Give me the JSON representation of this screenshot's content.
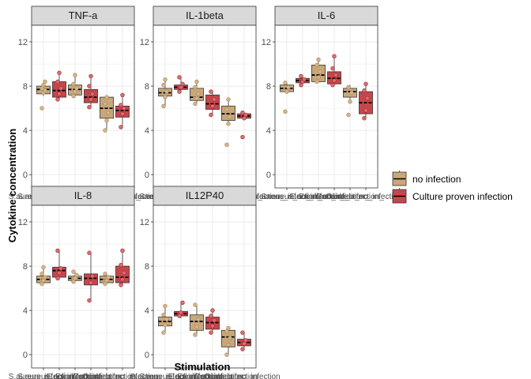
{
  "chart_data": {
    "type": "box",
    "xlabel": "Stimulation",
    "ylabel": "Cytokine concentration",
    "ylim": [
      -1.2,
      13.5
    ],
    "yticks": [
      0,
      4,
      8,
      12
    ],
    "grid": true,
    "legend_position": "right",
    "colors": {
      "no infection": "#c8a77a",
      "Culture proven infection": "#c6464a",
      "no_infection_points": "#d4b58a",
      "infection_points": "#e06b72",
      "strip_bg": "#d9d9d9",
      "grid": "#ebebeb",
      "box_outline": "#333333"
    },
    "legend": [
      {
        "label": "no infection",
        "key": "no infection"
      },
      {
        "label": "Culture proven infection",
        "key": "Culture proven infection"
      }
    ],
    "x_tick_labels": [
      "S.aureus_infection_",
      "S.aureus_no_infection_",
      "E.coli_infection_",
      "E.coli_no_infection_",
      "Candida_infection_",
      "Candida_no_infection_"
    ],
    "panels": [
      {
        "title": "TNF-a",
        "boxes": [
          {
            "group": "no infection",
            "q1": 7.3,
            "median": 7.7,
            "q3": 8.0,
            "min": 7.1,
            "max": 8.4,
            "points": [
              6.0,
              7.4,
              7.6,
              7.8,
              8.1,
              8.4
            ]
          },
          {
            "group": "Culture proven infection",
            "q1": 7.0,
            "median": 7.6,
            "q3": 8.4,
            "min": 6.8,
            "max": 9.2,
            "points": [
              6.8,
              7.3,
              7.8,
              8.4,
              9.2
            ]
          },
          {
            "group": "no infection",
            "q1": 7.2,
            "median": 7.7,
            "q3": 8.1,
            "min": 7.0,
            "max": 9.0,
            "points": [
              7.1,
              7.5,
              7.8,
              8.2,
              9.0
            ]
          },
          {
            "group": "Culture proven infection",
            "q1": 6.5,
            "median": 7.0,
            "q3": 7.7,
            "min": 6.0,
            "max": 8.9,
            "points": [
              6.1,
              6.8,
              7.3,
              8.0,
              8.9
            ]
          },
          {
            "group": "no infection",
            "q1": 5.1,
            "median": 6.0,
            "q3": 7.0,
            "min": 4.1,
            "max": 7.1,
            "points": [
              4.0,
              4.9,
              5.6,
              6.4,
              7.0
            ]
          },
          {
            "group": "Culture proven infection",
            "q1": 5.2,
            "median": 5.8,
            "q3": 6.2,
            "min": 4.3,
            "max": 7.2,
            "points": [
              4.3,
              5.5,
              6.0,
              6.3,
              7.2
            ]
          }
        ]
      },
      {
        "title": "IL-1beta",
        "boxes": [
          {
            "group": "no infection",
            "q1": 7.1,
            "median": 7.4,
            "q3": 7.8,
            "min": 6.2,
            "max": 8.6,
            "points": [
              6.2,
              7.0,
              7.5,
              8.1,
              8.6
            ]
          },
          {
            "group": "Culture proven infection",
            "q1": 7.7,
            "median": 7.9,
            "q3": 8.1,
            "min": 7.4,
            "max": 8.8,
            "points": [
              7.5,
              7.9,
              8.2,
              8.8
            ]
          },
          {
            "group": "no infection",
            "q1": 6.7,
            "median": 7.0,
            "q3": 7.8,
            "min": 6.4,
            "max": 8.4,
            "points": [
              6.4,
              6.9,
              7.3,
              7.9,
              8.4
            ]
          },
          {
            "group": "Culture proven infection",
            "q1": 5.9,
            "median": 6.4,
            "q3": 7.2,
            "min": 5.4,
            "max": 7.6,
            "points": [
              5.4,
              6.2,
              6.8,
              7.5
            ]
          },
          {
            "group": "no infection",
            "q1": 4.9,
            "median": 5.5,
            "q3": 6.2,
            "min": 4.5,
            "max": 6.8,
            "points": [
              2.7,
              4.6,
              5.2,
              5.9,
              6.8
            ]
          },
          {
            "group": "Culture proven infection",
            "q1": 5.1,
            "median": 5.3,
            "q3": 5.5,
            "min": 5.0,
            "max": 5.6,
            "points": [
              3.4,
              5.1,
              5.4,
              5.6
            ]
          }
        ]
      },
      {
        "title": "IL-6",
        "boxes": [
          {
            "group": "no infection",
            "q1": 7.5,
            "median": 7.8,
            "q3": 8.1,
            "min": 7.3,
            "max": 8.3,
            "points": [
              5.7,
              7.5,
              7.9,
              8.3
            ]
          },
          {
            "group": "Culture proven infection",
            "q1": 8.3,
            "median": 8.5,
            "q3": 8.7,
            "min": 8.1,
            "max": 8.9,
            "points": [
              8.1,
              8.4,
              8.6,
              8.9
            ]
          },
          {
            "group": "no infection",
            "q1": 8.4,
            "median": 9.0,
            "q3": 9.9,
            "min": 8.3,
            "max": 10.4,
            "points": [
              8.4,
              8.8,
              9.3,
              9.9,
              10.4
            ]
          },
          {
            "group": "Culture proven infection",
            "q1": 8.2,
            "median": 8.7,
            "q3": 9.3,
            "min": 8.0,
            "max": 10.7,
            "points": [
              8.1,
              8.5,
              9.0,
              9.6,
              10.7
            ]
          },
          {
            "group": "no infection",
            "q1": 7.0,
            "median": 7.5,
            "q3": 7.8,
            "min": 6.5,
            "max": 8.1,
            "points": [
              5.4,
              6.6,
              7.4,
              7.9
            ]
          },
          {
            "group": "Culture proven infection",
            "q1": 5.5,
            "median": 6.5,
            "q3": 7.5,
            "min": 5.1,
            "max": 8.2,
            "points": [
              5.1,
              5.8,
              6.9,
              7.6,
              8.2
            ]
          }
        ]
      },
      {
        "title": "IL-8",
        "boxes": [
          {
            "group": "no infection",
            "q1": 6.5,
            "median": 6.8,
            "q3": 7.1,
            "min": 6.4,
            "max": 7.9,
            "points": [
              6.4,
              6.7,
              7.0,
              7.3,
              7.9
            ]
          },
          {
            "group": "Culture proven infection",
            "q1": 7.0,
            "median": 7.6,
            "q3": 7.9,
            "min": 6.8,
            "max": 9.4,
            "points": [
              6.9,
              7.4,
              7.8,
              9.4
            ]
          },
          {
            "group": "no infection",
            "q1": 6.7,
            "median": 6.9,
            "q3": 7.1,
            "min": 6.5,
            "max": 7.4,
            "points": [
              6.6,
              6.9,
              7.2,
              7.5
            ]
          },
          {
            "group": "Culture proven infection",
            "q1": 6.3,
            "median": 6.9,
            "q3": 7.3,
            "min": 4.9,
            "max": 9.2,
            "points": [
              4.9,
              6.5,
              7.1,
              9.2
            ]
          },
          {
            "group": "no infection",
            "q1": 6.5,
            "median": 6.8,
            "q3": 7.1,
            "min": 6.3,
            "max": 7.4,
            "points": [
              6.4,
              6.7,
              7.0,
              7.3
            ]
          },
          {
            "group": "Culture proven infection",
            "q1": 6.5,
            "median": 7.0,
            "q3": 8.0,
            "min": 6.3,
            "max": 9.4,
            "points": [
              6.3,
              6.8,
              7.4,
              8.1,
              9.4
            ]
          }
        ]
      },
      {
        "title": "IL12P40",
        "boxes": [
          {
            "group": "no infection",
            "q1": 2.6,
            "median": 3.0,
            "q3": 3.4,
            "min": 2.0,
            "max": 4.4,
            "points": [
              2.0,
              2.7,
              3.2,
              3.6,
              4.4
            ]
          },
          {
            "group": "Culture proven infection",
            "q1": 3.5,
            "median": 3.7,
            "q3": 3.9,
            "min": 3.3,
            "max": 4.7,
            "points": [
              3.5,
              3.8,
              4.7
            ]
          },
          {
            "group": "no infection",
            "q1": 2.2,
            "median": 3.0,
            "q3": 3.6,
            "min": 1.8,
            "max": 4.5,
            "points": [
              1.8,
              2.5,
              3.2,
              4.5
            ]
          },
          {
            "group": "Culture proven infection",
            "q1": 2.3,
            "median": 2.9,
            "q3": 3.4,
            "min": 2.0,
            "max": 4.0,
            "points": [
              2.0,
              2.6,
              3.1,
              3.5,
              4.0
            ]
          },
          {
            "group": "no infection",
            "q1": 0.7,
            "median": 1.6,
            "q3": 2.2,
            "min": 0.0,
            "max": 2.4,
            "points": [
              0.0,
              0.9,
              1.5,
              2.1,
              2.4
            ]
          },
          {
            "group": "Culture proven infection",
            "q1": 0.8,
            "median": 1.1,
            "q3": 1.4,
            "min": 0.5,
            "max": 2.0,
            "points": [
              0.5,
              1.0,
              1.3,
              2.0
            ]
          }
        ]
      }
    ]
  }
}
